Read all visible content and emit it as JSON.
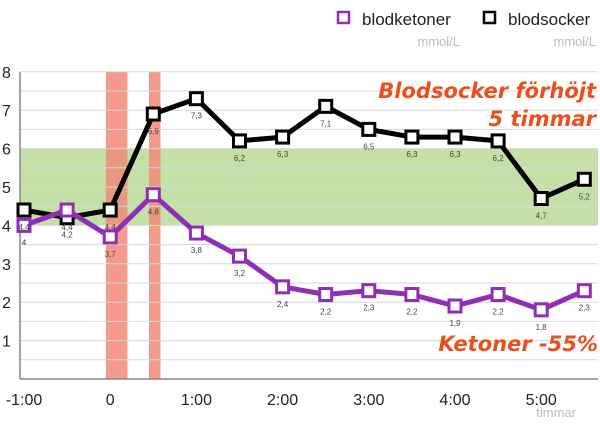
{
  "chart_data": {
    "type": "line",
    "x": [
      "-1:00",
      "-0:30",
      "0",
      "0:30",
      "1:00",
      "1:30",
      "2:00",
      "2:30",
      "3:00",
      "3:30",
      "4:00",
      "4:30",
      "5:00",
      "5:30"
    ],
    "x_tick_labels": [
      "-1:00",
      "0",
      "1:00",
      "2:00",
      "3:00",
      "4:00",
      "5:00"
    ],
    "xlabel": "timmar",
    "y_tick_labels": [
      "1",
      "2",
      "3",
      "4",
      "5",
      "6",
      "7",
      "8"
    ],
    "ylim": [
      0,
      8
    ],
    "grid": true,
    "legend_placement": "top-right",
    "series": [
      {
        "name": "blodketoner",
        "unit": "mmol/L",
        "color": "#8e2fb5",
        "values": [
          4,
          4.4,
          3.7,
          4.8,
          3.8,
          3.2,
          2.4,
          2.2,
          2.3,
          2.2,
          1.9,
          2.2,
          1.8,
          2.3
        ],
        "labels": [
          "4",
          "4,4",
          "3,7",
          "4,8",
          "3,8",
          "3,2",
          "2,4",
          "2,2",
          "2,3",
          "2,2",
          "1,9",
          "2,2",
          "1,8",
          "2,3"
        ]
      },
      {
        "name": "blodsocker",
        "unit": "mmol/L",
        "color": "#000000",
        "values": [
          4.4,
          4.2,
          4.4,
          6.9,
          7.3,
          6.2,
          6.3,
          7.1,
          6.5,
          6.3,
          6.3,
          6.2,
          4.7,
          5.2
        ],
        "labels": [
          "4,4",
          "4,2",
          "4,4",
          "6,9",
          "7,3",
          "6,2",
          "6,3",
          "7,1",
          "6,5",
          "6,3",
          "6,3",
          "6,2",
          "4,7",
          "5,2"
        ]
      }
    ],
    "target_band": {
      "from": 4,
      "to": 6,
      "color": "#c4e0a6"
    },
    "highlight_bars": [
      {
        "from": "-0:03",
        "to": "0:12"
      },
      {
        "from": "0:27",
        "to": "0:35"
      }
    ],
    "highlight_color": "#f08a78",
    "annotations": [
      {
        "text": "Blodsocker förhöjt"
      },
      {
        "text": "5 timmar"
      },
      {
        "text": "Ketoner -55%"
      }
    ]
  }
}
